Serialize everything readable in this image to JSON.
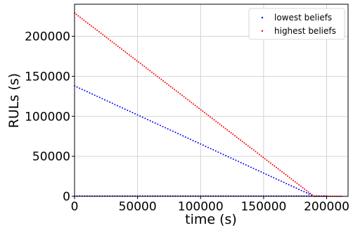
{
  "chart_data": {
    "type": "scatter",
    "xlabel": "time (s)",
    "ylabel": "RULs (s)",
    "xlim": [
      0,
      217000
    ],
    "ylim": [
      0,
      240000
    ],
    "xticks": [
      0,
      50000,
      100000,
      150000,
      200000
    ],
    "yticks": [
      0,
      50000,
      100000,
      150000,
      200000
    ],
    "grid": true,
    "legend_position": "top-right",
    "series": [
      {
        "name": "lowest beliefs",
        "color": "#0000ff",
        "segments": [
          {
            "x_start": 0,
            "x_end": 190000,
            "y_start": 138000,
            "y_end": 0,
            "step": 2000
          },
          {
            "x_start": 0,
            "x_end": 200000,
            "y_start": 400,
            "y_end": 400,
            "step": 2000
          }
        ]
      },
      {
        "name": "highest beliefs",
        "color": "#ff0000",
        "segments": [
          {
            "x_start": 0,
            "x_end": 190000,
            "y_start": 229000,
            "y_end": 0,
            "step": 1500
          },
          {
            "x_start": 190000,
            "x_end": 212000,
            "y_start": 0,
            "y_end": 0,
            "step": 1500
          }
        ]
      }
    ]
  }
}
